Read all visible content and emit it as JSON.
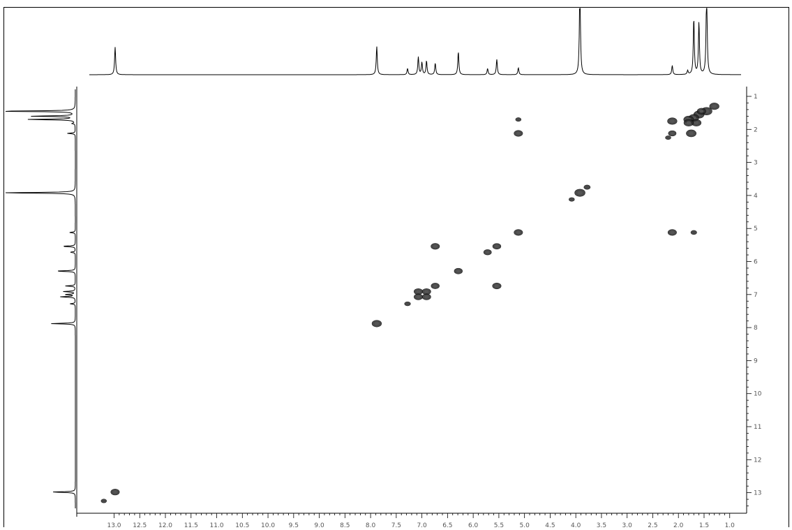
{
  "chart_data": {
    "type": "scatter",
    "subtype": "2D NMR COSY contour plot with 1D projections",
    "x_axis": {
      "range": [
        13.4,
        0.8
      ],
      "reversed": true,
      "ticks": [
        "13.0",
        "12.5",
        "12.0",
        "11.5",
        "11.0",
        "10.5",
        "10.0",
        "9.5",
        "9.0",
        "8.5",
        "8.0",
        "7.5",
        "7.0",
        "6.5",
        "6.0",
        "5.5",
        "5.0",
        "4.5",
        "4.0",
        "3.5",
        "3.0",
        "2.5",
        "2.0",
        "1.5",
        "1.0"
      ]
    },
    "y_axis": {
      "range": [
        0.7,
        13.5
      ],
      "position": "right",
      "ticks": [
        "1",
        "2",
        "3",
        "4",
        "5",
        "6",
        "7",
        "8",
        "9",
        "10",
        "11",
        "12",
        "13"
      ]
    },
    "grid": false,
    "projection_peaks": [
      {
        "ppm": 12.98,
        "h": 0.36
      },
      {
        "ppm": 7.88,
        "h": 0.37
      },
      {
        "ppm": 7.28,
        "h": 0.08
      },
      {
        "ppm": 7.07,
        "h": 0.23
      },
      {
        "ppm": 7.0,
        "h": 0.16
      },
      {
        "ppm": 6.91,
        "h": 0.18
      },
      {
        "ppm": 6.74,
        "h": 0.15
      },
      {
        "ppm": 6.29,
        "h": 0.3
      },
      {
        "ppm": 5.72,
        "h": 0.08
      },
      {
        "ppm": 5.54,
        "h": 0.2
      },
      {
        "ppm": 5.12,
        "h": 0.09
      },
      {
        "ppm": 3.92,
        "h": 1.2
      },
      {
        "ppm": 2.12,
        "h": 0.12
      },
      {
        "ppm": 1.82,
        "h": 0.05
      },
      {
        "ppm": 1.7,
        "h": 0.73
      },
      {
        "ppm": 1.6,
        "h": 0.68
      },
      {
        "ppm": 1.45,
        "h": 1.2
      }
    ],
    "cross_peaks": [
      {
        "x": 1.3,
        "y": 1.3,
        "r": 1.2
      },
      {
        "x": 1.45,
        "y": 1.45,
        "r": 1.5
      },
      {
        "x": 1.6,
        "y": 1.55,
        "r": 1.4
      },
      {
        "x": 1.7,
        "y": 1.65,
        "r": 1.3
      },
      {
        "x": 1.8,
        "y": 1.7,
        "r": 1.3
      },
      {
        "x": 1.65,
        "y": 1.8,
        "r": 1.2
      },
      {
        "x": 1.8,
        "y": 1.8,
        "r": 1.2
      },
      {
        "x": 1.55,
        "y": 1.45,
        "r": 1.0
      },
      {
        "x": 2.12,
        "y": 1.75,
        "r": 1.2
      },
      {
        "x": 2.12,
        "y": 2.12,
        "r": 0.8
      },
      {
        "x": 1.75,
        "y": 2.12,
        "r": 1.3
      },
      {
        "x": 2.2,
        "y": 2.25,
        "r": 0.3
      },
      {
        "x": 5.12,
        "y": 1.7,
        "r": 0.3
      },
      {
        "x": 5.12,
        "y": 2.12,
        "r": 1.0
      },
      {
        "x": 3.92,
        "y": 3.92,
        "r": 1.4
      },
      {
        "x": 3.78,
        "y": 3.75,
        "r": 0.5
      },
      {
        "x": 4.08,
        "y": 4.12,
        "r": 0.3
      },
      {
        "x": 5.12,
        "y": 5.12,
        "r": 1.0
      },
      {
        "x": 2.12,
        "y": 5.12,
        "r": 1.0
      },
      {
        "x": 1.7,
        "y": 5.12,
        "r": 0.4
      },
      {
        "x": 6.74,
        "y": 5.54,
        "r": 1.0
      },
      {
        "x": 5.54,
        "y": 5.54,
        "r": 0.9
      },
      {
        "x": 5.72,
        "y": 5.72,
        "r": 0.8
      },
      {
        "x": 6.29,
        "y": 6.29,
        "r": 0.9
      },
      {
        "x": 6.74,
        "y": 6.74,
        "r": 0.9
      },
      {
        "x": 5.54,
        "y": 6.74,
        "r": 1.0
      },
      {
        "x": 7.07,
        "y": 6.91,
        "r": 1.0
      },
      {
        "x": 6.91,
        "y": 6.91,
        "r": 1.0
      },
      {
        "x": 7.07,
        "y": 7.07,
        "r": 1.0
      },
      {
        "x": 6.91,
        "y": 7.07,
        "r": 1.0
      },
      {
        "x": 7.28,
        "y": 7.28,
        "r": 0.4
      },
      {
        "x": 7.88,
        "y": 7.88,
        "r": 1.2
      },
      {
        "x": 12.98,
        "y": 12.98,
        "r": 1.0
      },
      {
        "x": 13.2,
        "y": 13.25,
        "r": 0.3
      }
    ],
    "colors": {
      "line": "#000000",
      "contour": "#2b2b2b",
      "tick_label": "#555555"
    }
  }
}
